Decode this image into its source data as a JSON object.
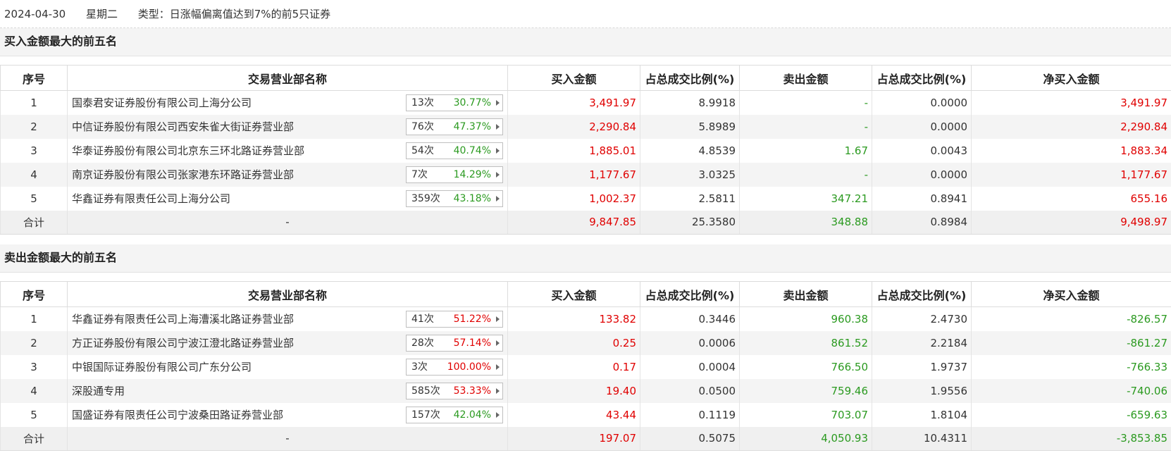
{
  "header": {
    "date": "2024-04-30",
    "weekday": "星期二",
    "type_label": "类型：日涨幅偏离值达到7%的前5只证券"
  },
  "columns": [
    "序号",
    "交易营业部名称",
    "买入金额",
    "占总成交比例(%)",
    "卖出金额",
    "占总成交比例(%)",
    "净买入金额"
  ],
  "buy_section": {
    "title": "买入金额最大的前五名",
    "rows": [
      {
        "idx": "1",
        "name": "国泰君安证券股份有限公司上海分公司",
        "count": "13次",
        "rate": "30.77%",
        "rate_color": "green",
        "buy": "3,491.97",
        "buy_pct": "8.9918",
        "sell": "-",
        "sell_pct": "0.0000",
        "net": "3,491.97",
        "net_color": "red"
      },
      {
        "idx": "2",
        "name": "中信证券股份有限公司西安朱雀大街证券营业部",
        "count": "76次",
        "rate": "47.37%",
        "rate_color": "green",
        "buy": "2,290.84",
        "buy_pct": "5.8989",
        "sell": "-",
        "sell_pct": "0.0000",
        "net": "2,290.84",
        "net_color": "red"
      },
      {
        "idx": "3",
        "name": "华泰证券股份有限公司北京东三环北路证券营业部",
        "count": "54次",
        "rate": "40.74%",
        "rate_color": "green",
        "buy": "1,885.01",
        "buy_pct": "4.8539",
        "sell": "1.67",
        "sell_pct": "0.0043",
        "net": "1,883.34",
        "net_color": "red"
      },
      {
        "idx": "4",
        "name": "南京证券股份有限公司张家港东环路证券营业部",
        "count": "7次",
        "rate": "14.29%",
        "rate_color": "green",
        "buy": "1,177.67",
        "buy_pct": "3.0325",
        "sell": "-",
        "sell_pct": "0.0000",
        "net": "1,177.67",
        "net_color": "red"
      },
      {
        "idx": "5",
        "name": "华鑫证券有限责任公司上海分公司",
        "count": "359次",
        "rate": "43.18%",
        "rate_color": "green",
        "buy": "1,002.37",
        "buy_pct": "2.5811",
        "sell": "347.21",
        "sell_pct": "0.8941",
        "net": "655.16",
        "net_color": "red"
      }
    ],
    "total": {
      "label": "合计",
      "name": "-",
      "buy": "9,847.85",
      "buy_pct": "25.3580",
      "sell": "348.88",
      "sell_pct": "0.8984",
      "net": "9,498.97",
      "net_color": "red"
    }
  },
  "sell_section": {
    "title": "卖出金额最大的前五名",
    "rows": [
      {
        "idx": "1",
        "name": "华鑫证券有限责任公司上海漕溪北路证券营业部",
        "count": "41次",
        "rate": "51.22%",
        "rate_color": "red",
        "buy": "133.82",
        "buy_pct": "0.3446",
        "sell": "960.38",
        "sell_pct": "2.4730",
        "net": "-826.57",
        "net_color": "green"
      },
      {
        "idx": "2",
        "name": "方正证券股份有限公司宁波江澄北路证券营业部",
        "count": "28次",
        "rate": "57.14%",
        "rate_color": "red",
        "buy": "0.25",
        "buy_pct": "0.0006",
        "sell": "861.52",
        "sell_pct": "2.2184",
        "net": "-861.27",
        "net_color": "green"
      },
      {
        "idx": "3",
        "name": "中银国际证券股份有限公司广东分公司",
        "count": "3次",
        "rate": "100.00%",
        "rate_color": "red",
        "buy": "0.17",
        "buy_pct": "0.0004",
        "sell": "766.50",
        "sell_pct": "1.9737",
        "net": "-766.33",
        "net_color": "green"
      },
      {
        "idx": "4",
        "name": "深股通专用",
        "count": "585次",
        "rate": "53.33%",
        "rate_color": "red",
        "buy": "19.40",
        "buy_pct": "0.0500",
        "sell": "759.46",
        "sell_pct": "1.9556",
        "net": "-740.06",
        "net_color": "green"
      },
      {
        "idx": "5",
        "name": "国盛证券有限责任公司宁波桑田路证券营业部",
        "count": "157次",
        "rate": "42.04%",
        "rate_color": "green",
        "buy": "43.44",
        "buy_pct": "0.1119",
        "sell": "703.07",
        "sell_pct": "1.8104",
        "net": "-659.63",
        "net_color": "green"
      }
    ],
    "total": {
      "label": "合计",
      "name": "-",
      "buy": "197.07",
      "buy_pct": "0.5075",
      "sell": "4,050.93",
      "sell_pct": "10.4311",
      "net": "-3,853.85",
      "net_color": "green"
    }
  },
  "colors": {
    "red": "#e00000",
    "green": "#2b9a20"
  },
  "icons": {
    "row_arrow": "caret-right-icon"
  }
}
